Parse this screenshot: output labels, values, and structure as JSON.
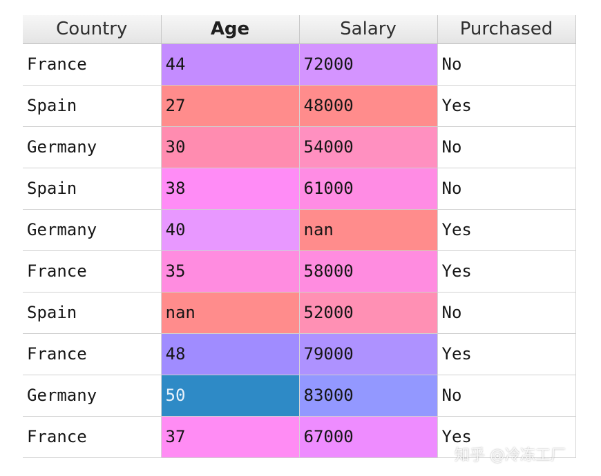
{
  "table": {
    "columns": [
      {
        "label": "Country",
        "sorted": false
      },
      {
        "label": "Age",
        "sorted": true
      },
      {
        "label": "Salary",
        "sorted": false
      },
      {
        "label": "Purchased",
        "sorted": false
      }
    ],
    "rows": [
      {
        "country": "France",
        "age": "44",
        "salary": "72000",
        "purchased": "No",
        "age_color": "#c48cff",
        "salary_color": "#d494ff"
      },
      {
        "country": "Spain",
        "age": "27",
        "salary": "48000",
        "purchased": "Yes",
        "age_color": "#ff8c8c",
        "salary_color": "#ff8c8c"
      },
      {
        "country": "Germany",
        "age": "30",
        "salary": "54000",
        "purchased": "No",
        "age_color": "#ff8cb0",
        "salary_color": "#ff90c0"
      },
      {
        "country": "Spain",
        "age": "38",
        "salary": "61000",
        "purchased": "No",
        "age_color": "#ff8cf6",
        "salary_color": "#ff8ce4"
      },
      {
        "country": "Germany",
        "age": "40",
        "salary": "nan",
        "purchased": "Yes",
        "age_color": "#e898ff",
        "salary_color": "#ff8c8c"
      },
      {
        "country": "France",
        "age": "35",
        "salary": "58000",
        "purchased": "Yes",
        "age_color": "#ff8ce0",
        "salary_color": "#ff8ce0"
      },
      {
        "country": "Spain",
        "age": "nan",
        "salary": "52000",
        "purchased": "No",
        "age_color": "#ff8c8c",
        "salary_color": "#ff90b4"
      },
      {
        "country": "France",
        "age": "48",
        "salary": "79000",
        "purchased": "Yes",
        "age_color": "#a08cff",
        "salary_color": "#ae92ff"
      },
      {
        "country": "Germany",
        "age": "50",
        "salary": "83000",
        "purchased": "No",
        "age_color": "#2e8ac6",
        "salary_color": "#9398ff",
        "age_selected": true
      },
      {
        "country": "France",
        "age": "37",
        "salary": "67000",
        "purchased": "Yes",
        "age_color": "#ff8cf4",
        "salary_color": "#ee8cff"
      }
    ]
  },
  "watermark": "知乎 @冷冻工厂"
}
